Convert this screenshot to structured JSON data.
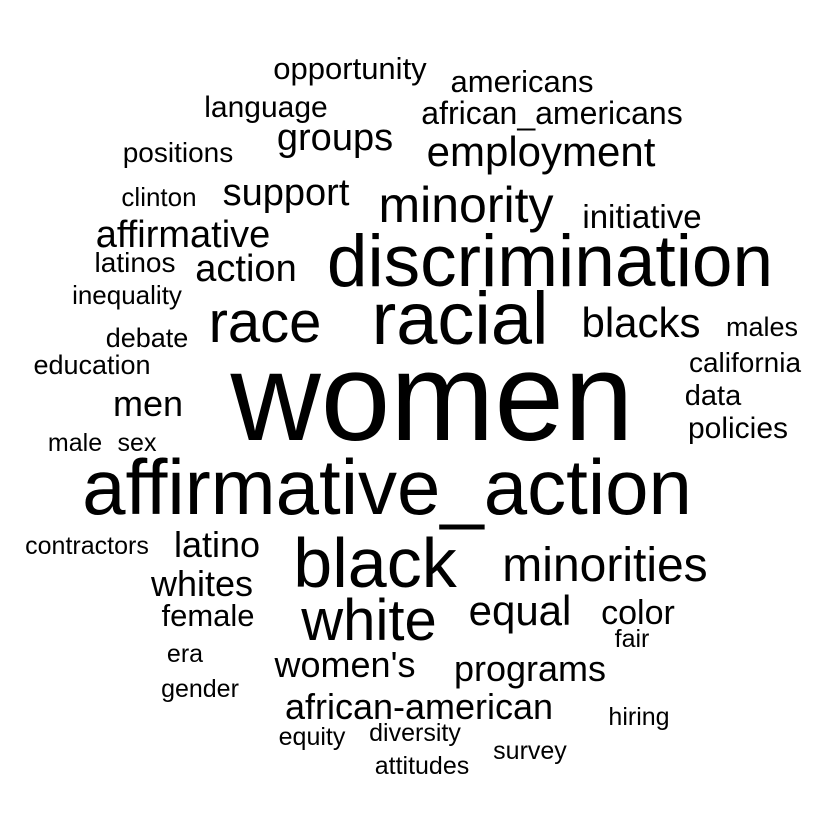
{
  "chart_data": {
    "type": "wordcloud",
    "color": "#000000",
    "words": [
      {
        "text": "women",
        "weight": 125
      },
      {
        "text": "affirmative_action",
        "weight": 78
      },
      {
        "text": "discrimination",
        "weight": 73
      },
      {
        "text": "racial",
        "weight": 74
      },
      {
        "text": "black",
        "weight": 70
      },
      {
        "text": "race",
        "weight": 58
      },
      {
        "text": "white",
        "weight": 58
      },
      {
        "text": "minority",
        "weight": 50
      },
      {
        "text": "minorities",
        "weight": 48
      },
      {
        "text": "blacks",
        "weight": 42
      },
      {
        "text": "employment",
        "weight": 42
      },
      {
        "text": "equal",
        "weight": 42
      },
      {
        "text": "action",
        "weight": 38
      },
      {
        "text": "support",
        "weight": 38
      },
      {
        "text": "groups",
        "weight": 38
      },
      {
        "text": "affirmative",
        "weight": 38
      },
      {
        "text": "women's",
        "weight": 36
      },
      {
        "text": "programs",
        "weight": 36
      },
      {
        "text": "men",
        "weight": 36
      },
      {
        "text": "latino",
        "weight": 36
      },
      {
        "text": "whites",
        "weight": 36
      },
      {
        "text": "african-american",
        "weight": 36
      },
      {
        "text": "african_americans",
        "weight": 32
      },
      {
        "text": "color",
        "weight": 34
      },
      {
        "text": "initiative",
        "weight": 33
      },
      {
        "text": "americans",
        "weight": 31
      },
      {
        "text": "opportunity",
        "weight": 31
      },
      {
        "text": "female",
        "weight": 31
      },
      {
        "text": "language",
        "weight": 30
      },
      {
        "text": "policies",
        "weight": 30
      },
      {
        "text": "data",
        "weight": 29
      },
      {
        "text": "positions",
        "weight": 28
      },
      {
        "text": "latinos",
        "weight": 28
      },
      {
        "text": "california",
        "weight": 28
      },
      {
        "text": "males",
        "weight": 27
      },
      {
        "text": "education",
        "weight": 27
      },
      {
        "text": "debate",
        "weight": 27
      },
      {
        "text": "inequality",
        "weight": 26
      },
      {
        "text": "clinton",
        "weight": 26
      },
      {
        "text": "contractors",
        "weight": 25
      },
      {
        "text": "male",
        "weight": 25
      },
      {
        "text": "sex",
        "weight": 25
      },
      {
        "text": "era",
        "weight": 25
      },
      {
        "text": "gender",
        "weight": 25
      },
      {
        "text": "hiring",
        "weight": 25
      },
      {
        "text": "equity",
        "weight": 25
      },
      {
        "text": "diversity",
        "weight": 25
      },
      {
        "text": "survey",
        "weight": 25
      },
      {
        "text": "attitudes",
        "weight": 25
      },
      {
        "text": "fair",
        "weight": 25
      }
    ]
  }
}
